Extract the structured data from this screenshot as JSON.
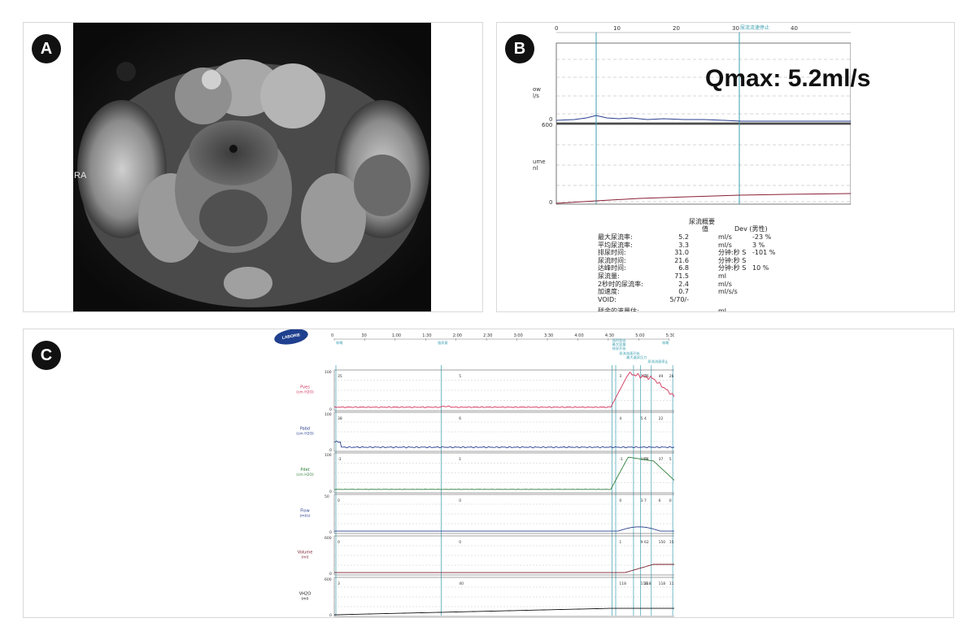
{
  "panels": {
    "a": {
      "label": "A",
      "side_label": "RA"
    },
    "b": {
      "label": "B",
      "qmax": "Qmax: 5.2ml/s",
      "top_ticks": [
        "0",
        "10",
        "20",
        "30",
        "40"
      ],
      "marker": "尿流流速停止",
      "flow_axis": {
        "label_line1": "ow",
        "label_line2": "l/s",
        "max": "60",
        "min": "0"
      },
      "vol_axis": {
        "label_line1": "ume",
        "label_line2": "nl",
        "max": "600",
        "min": "0"
      },
      "summary": {
        "title": "尿流概要",
        "col_value": "值",
        "col_dev": "Dev (男性)",
        "rows": [
          {
            "name": "最大尿流率:",
            "value": "5.2",
            "unit": "ml/s",
            "dev": "-23 %"
          },
          {
            "name": "平均尿流率:",
            "value": "3.3",
            "unit": "ml/s",
            "dev": "3 %"
          },
          {
            "name": "排尿时间:",
            "value": "31.0",
            "unit": "分钟:秒 S",
            "dev": "-101 %"
          },
          {
            "name": "尿流时间:",
            "value": "21.6",
            "unit": "分钟:秒 S",
            "dev": ""
          },
          {
            "name": "达峰时间:",
            "value": "6.8",
            "unit": "分钟:秒 S",
            "dev": "10 %"
          },
          {
            "name": "尿流量:",
            "value": "71.5",
            "unit": "ml",
            "dev": ""
          },
          {
            "name": "2秒时的尿流率:",
            "value": "2.4",
            "unit": "ml/s",
            "dev": ""
          },
          {
            "name": "加速度:",
            "value": "0.7",
            "unit": "ml/s/s",
            "dev": ""
          },
          {
            "name": "VOID:",
            "value": "5/70/-",
            "unit": "",
            "dev": ""
          }
        ],
        "footer_name": "残余的液量估:",
        "footer_unit": "ml"
      }
    },
    "c": {
      "label": "C",
      "logo": "LABORIE",
      "time_ticks": [
        "0",
        "30",
        "1:00",
        "1:30",
        "2:00",
        "2:30",
        "3:00",
        "3:30",
        "4:00",
        "4:30",
        "5:00",
        "5:30"
      ],
      "events": [
        "咳嗽",
        "强尿意",
        "强烈急迫",
        "最大容量",
        "排尿开始",
        "尿流流速开始",
        "最大逼尿压力",
        "尿流流速停止",
        "咳嗽"
      ],
      "channels": [
        {
          "name": "Pves",
          "unit": "(cm H2O)",
          "max": "100",
          "min": "0",
          "color": "#d2325a",
          "vals": [
            "35",
            "5",
            "3",
            "111",
            "16",
            "49",
            "26"
          ]
        },
        {
          "name": "Pabd",
          "unit": "(cm H2O)",
          "max": "100",
          "min": "0",
          "color": "#2a3f8f",
          "vals": [
            "38",
            "6",
            "4",
            "5",
            "4",
            "22"
          ]
        },
        {
          "name": "Pdet",
          "unit": "(cm H2O)",
          "max": "100",
          "min": "0",
          "color": "#2f7f3a",
          "vals": [
            "-3",
            "1",
            "-1",
            "105",
            "84",
            "37",
            "5"
          ]
        },
        {
          "name": "Flow",
          "unit": "(ml/s)",
          "max": "50",
          "min": "0",
          "color": "#2a3f8f",
          "vals": [
            "0",
            "0",
            "0",
            "3",
            "7",
            "6",
            "0"
          ]
        },
        {
          "name": "Volume",
          "unit": "(ml)",
          "max": "600",
          "min": "0",
          "color": "#7a1f2e",
          "vals": [
            "0",
            "0",
            "1",
            "9",
            "62",
            "150",
            "153"
          ]
        },
        {
          "name": "VH2O",
          "unit": "(ml)",
          "max": "600",
          "min": "0",
          "color": "#111111",
          "vals": [
            "3",
            "40",
            "118",
            "118",
            "118",
            "118",
            "118"
          ]
        }
      ]
    }
  },
  "colors": {
    "cyan_marker": "#3a9fb0",
    "grid": "#b8b8b8"
  }
}
